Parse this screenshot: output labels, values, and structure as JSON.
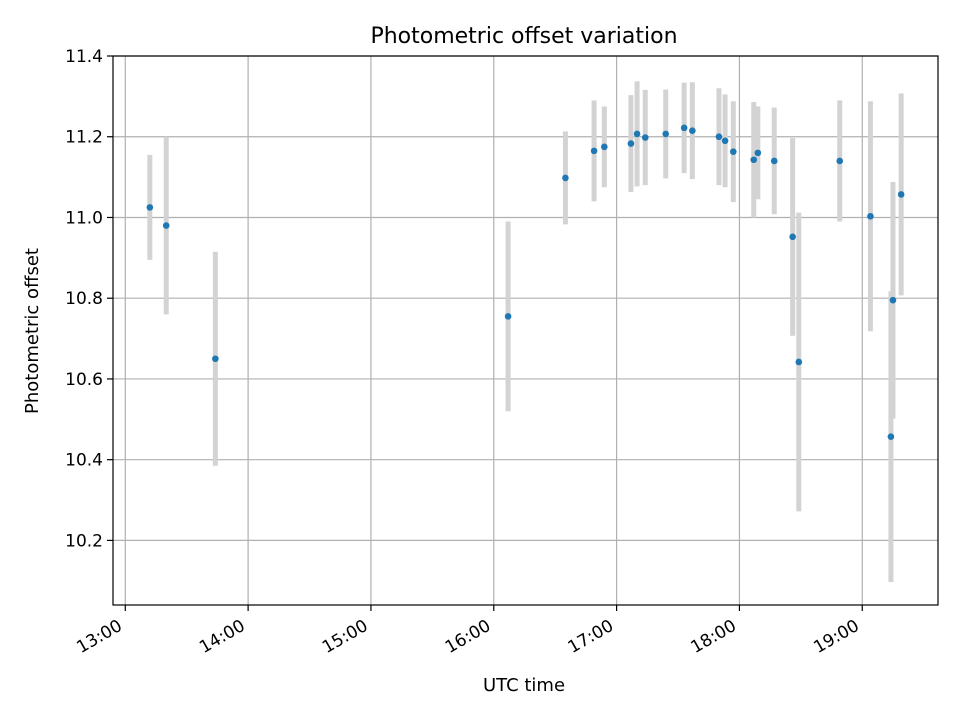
{
  "chart_data": {
    "type": "scatter",
    "title": "Photometric offset variation",
    "xlabel": "UTC time",
    "ylabel": "Photometric offset",
    "xlim": [
      "12:54",
      "19:37"
    ],
    "ylim": [
      10.04,
      11.4
    ],
    "x_ticks": [
      "13:00",
      "14:00",
      "15:00",
      "16:00",
      "17:00",
      "18:00",
      "19:00"
    ],
    "y_ticks": [
      10.2,
      10.4,
      10.6,
      10.8,
      11.0,
      11.2,
      11.4
    ],
    "y_tick_labels": [
      "10.2",
      "10.4",
      "10.6",
      "10.8",
      "11.0",
      "11.2",
      "11.4"
    ],
    "grid": true,
    "colors": {
      "point": "#1f77b4",
      "errorbar": "#d3d3d3",
      "grid": "#b0b0b0"
    },
    "points": [
      {
        "t": "13:12",
        "y": 11.025,
        "err": 0.13
      },
      {
        "t": "13:20",
        "y": 10.98,
        "err": 0.22
      },
      {
        "t": "13:44",
        "y": 10.65,
        "err": 0.265
      },
      {
        "t": "16:07",
        "y": 10.755,
        "err": 0.235
      },
      {
        "t": "16:35",
        "y": 11.098,
        "err": 0.115
      },
      {
        "t": "16:49",
        "y": 11.165,
        "err": 0.125
      },
      {
        "t": "16:54",
        "y": 11.175,
        "err": 0.1
      },
      {
        "t": "17:07",
        "y": 11.183,
        "err": 0.12
      },
      {
        "t": "17:10",
        "y": 11.207,
        "err": 0.13
      },
      {
        "t": "17:14",
        "y": 11.198,
        "err": 0.118
      },
      {
        "t": "17:24",
        "y": 11.207,
        "err": 0.11
      },
      {
        "t": "17:33",
        "y": 11.222,
        "err": 0.112
      },
      {
        "t": "17:37",
        "y": 11.215,
        "err": 0.12
      },
      {
        "t": "17:50",
        "y": 11.2,
        "err": 0.12
      },
      {
        "t": "17:53",
        "y": 11.19,
        "err": 0.115
      },
      {
        "t": "17:57",
        "y": 11.163,
        "err": 0.125
      },
      {
        "t": "18:07",
        "y": 11.143,
        "err": 0.143
      },
      {
        "t": "18:09",
        "y": 11.16,
        "err": 0.115
      },
      {
        "t": "18:17",
        "y": 11.14,
        "err": 0.132
      },
      {
        "t": "18:26",
        "y": 10.952,
        "err": 0.245
      },
      {
        "t": "18:29",
        "y": 10.642,
        "err": 0.37
      },
      {
        "t": "18:49",
        "y": 11.14,
        "err": 0.15
      },
      {
        "t": "19:04",
        "y": 11.003,
        "err": 0.285
      },
      {
        "t": "19:14",
        "y": 10.457,
        "err": 0.36
      },
      {
        "t": "19:15",
        "y": 10.795,
        "err": 0.293
      },
      {
        "t": "19:19",
        "y": 11.057,
        "err": 0.25
      }
    ]
  }
}
